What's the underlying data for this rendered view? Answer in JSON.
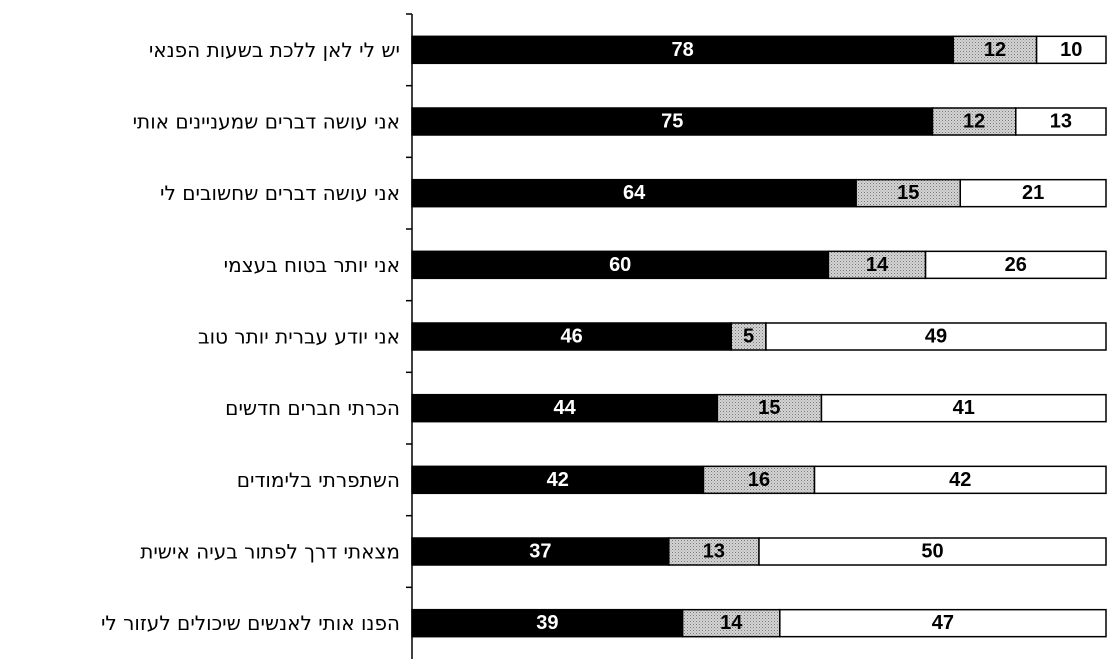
{
  "chart_data": {
    "type": "bar",
    "orientation": "horizontal",
    "stacked": true,
    "percent_scale": true,
    "categories": [
      "יש לי לאן ללכת בשעות הפנאי",
      "אני עושה דברים שמעניינים אותי",
      "אני עושה דברים שחשובים לי",
      "אני יותר בטוח בעצמי",
      "אני יודע עברית יותר טוב",
      "הכרתי חברים חדשים",
      "השתפרתי בלימודים",
      "מצאתי דרך לפתור בעיה אישית",
      "הפנו אותי לאנשים שיכולים לעזור לי"
    ],
    "series": [
      {
        "values": [
          78,
          75,
          64,
          60,
          46,
          44,
          42,
          37,
          39
        ],
        "color": "#000000"
      },
      {
        "values": [
          12,
          12,
          15,
          14,
          5,
          15,
          16,
          13,
          14
        ],
        "color": "#c8c8c8",
        "pattern": "dotted-gray"
      },
      {
        "values": [
          10,
          13,
          21,
          26,
          49,
          41,
          42,
          50,
          47
        ],
        "color": "#ffffff"
      }
    ],
    "xlim": [
      0,
      100
    ],
    "grid": false,
    "legend": "none",
    "title": "",
    "xlabel": "",
    "ylabel": ""
  }
}
